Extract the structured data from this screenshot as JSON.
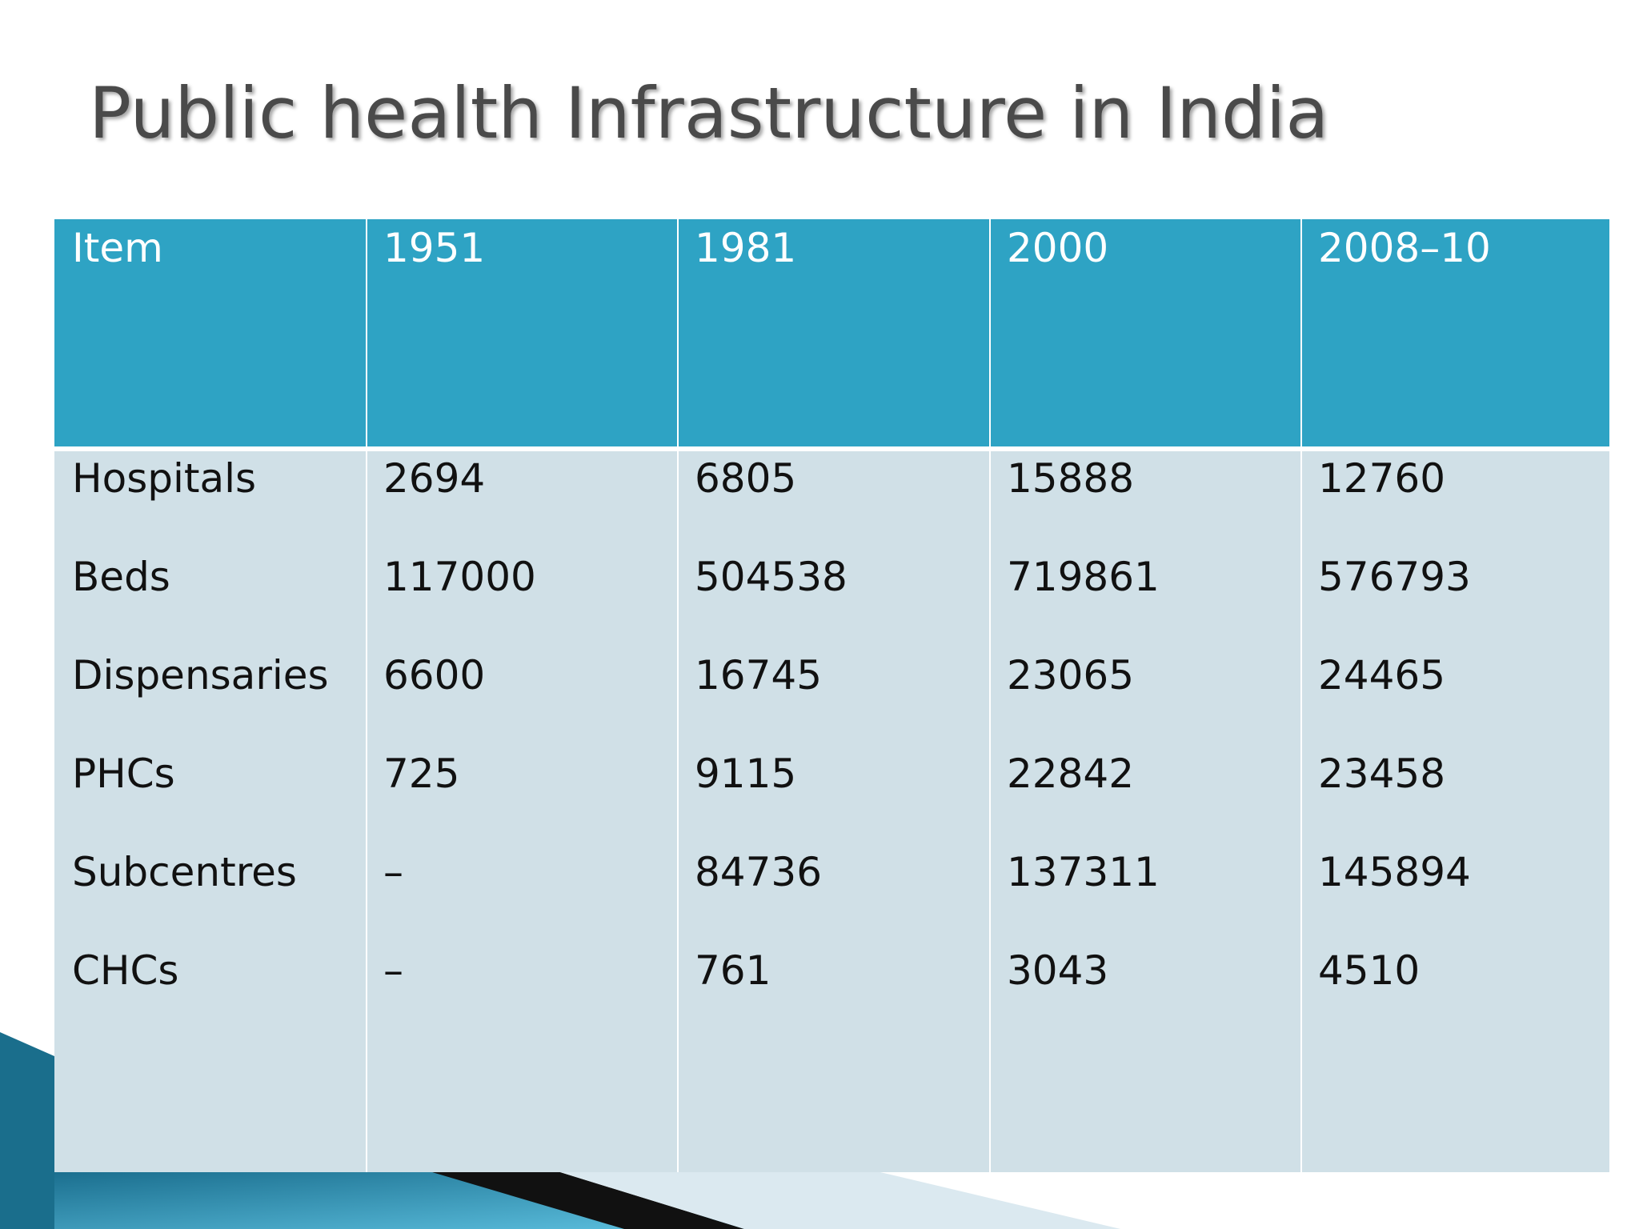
{
  "title": "Public health Infrastructure in India",
  "table": {
    "header": [
      "Item",
      "1951",
      "1981",
      "2000",
      "2008–10"
    ],
    "rows": [
      [
        "Hospitals",
        "2694",
        "6805",
        "15888",
        "12760"
      ],
      [
        "Beds",
        "117000",
        "504538",
        "719861",
        "576793"
      ],
      [
        "Dispensaries",
        "6600",
        "16745",
        "23065",
        "24465"
      ],
      [
        "PHCs",
        "725",
        "9115",
        "22842",
        "23458"
      ],
      [
        "Subcentres",
        "–",
        "84736",
        "137311",
        "145894"
      ],
      [
        "CHCs",
        "–",
        "761",
        "3043",
        "4510"
      ]
    ]
  }
}
